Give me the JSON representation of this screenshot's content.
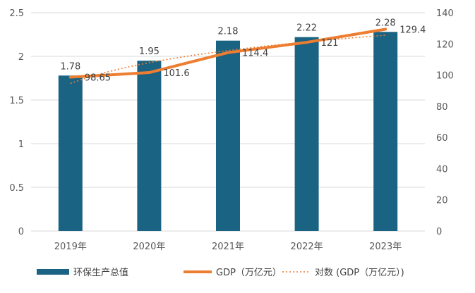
{
  "chart_data": {
    "type": "bar",
    "categories": [
      "2019年",
      "2020年",
      "2021年",
      "2022年",
      "2023年"
    ],
    "series": [
      {
        "name": "环保生产总值",
        "type": "bar",
        "axis": "left",
        "values": [
          1.78,
          1.95,
          2.18,
          2.22,
          2.28
        ],
        "color": "#1b6382"
      },
      {
        "name": "GDP（万亿元）",
        "type": "line",
        "axis": "right",
        "values": [
          98.65,
          101.6,
          114.4,
          121,
          129.4
        ],
        "color": "#ed7d31"
      },
      {
        "name": "对数 (GDP（万亿元）)",
        "type": "trendline-log",
        "axis": "right",
        "color": "#ed7d31"
      }
    ],
    "left_axis": {
      "min": 0,
      "max": 2.5,
      "step": 0.5,
      "ticks": [
        "0",
        "0.5",
        "1",
        "1.5",
        "2",
        "2.5"
      ]
    },
    "right_axis": {
      "min": 0,
      "max": 140,
      "step": 20,
      "ticks": [
        "0",
        "20",
        "40",
        "60",
        "80",
        "100",
        "120",
        "140"
      ]
    },
    "bar_labels": [
      "1.78",
      "1.95",
      "2.18",
      "2.22",
      "2.28"
    ],
    "line_labels": [
      "98.65",
      "101.6",
      "114.4",
      "121",
      "129.4"
    ],
    "grid": true,
    "legend_position": "bottom"
  },
  "legend": {
    "items": [
      {
        "label": "环保生产总值",
        "kind": "bar",
        "color": "#1b6382"
      },
      {
        "label": "GDP（万亿元）",
        "kind": "line",
        "color": "#ed7d31"
      },
      {
        "label": "对数 (GDP（万亿元）)",
        "kind": "dotted",
        "color": "#ed7d31"
      }
    ]
  }
}
